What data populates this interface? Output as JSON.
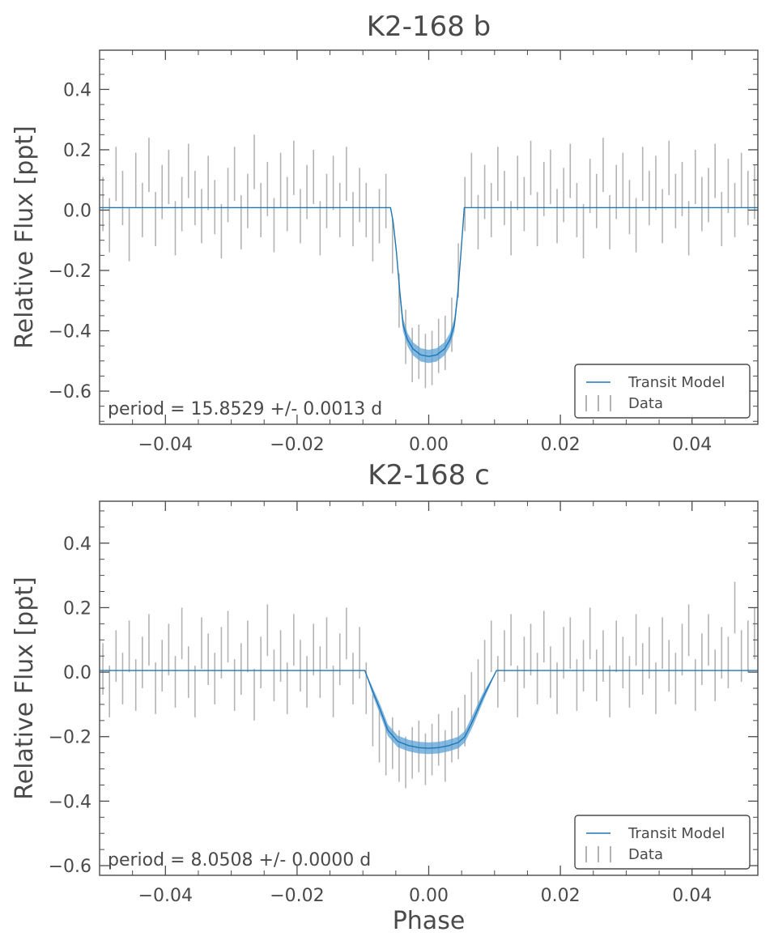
{
  "chart_data": [
    {
      "type": "scatter",
      "title": "K2-168 b",
      "xlabel": "",
      "ylabel": "Relative Flux [ppt]",
      "xlim": [
        -0.05,
        0.05
      ],
      "ylim": [
        -0.71,
        0.53
      ],
      "xticks": [
        -0.04,
        -0.02,
        0.0,
        0.02,
        0.04
      ],
      "xtick_labels": [
        "−0.04",
        "−0.02",
        "0.00",
        "0.02",
        "0.04"
      ],
      "yticks": [
        -0.6,
        -0.4,
        -0.2,
        0.0,
        0.2,
        0.4
      ],
      "ytick_labels": [
        "−0.6",
        "−0.4",
        "−0.2",
        "0.0",
        "0.2",
        "0.4"
      ],
      "annotation": "period = 15.8529 +/- 0.0013 d",
      "legend": {
        "position": "lower right",
        "entries": [
          "Transit Model",
          "Data"
        ]
      },
      "grid": false,
      "colors": {
        "model": "#1f77b4",
        "band": "#5aa0d6",
        "data": "#a0a0a0",
        "axis": "#4a4a4a"
      },
      "series": [
        {
          "name": "Transit Model",
          "kind": "line",
          "x": [
            -0.05,
            -0.0058,
            -0.0054,
            -0.0049,
            -0.0044,
            -0.0039,
            -0.0032,
            -0.0024,
            -0.0012,
            0.0,
            0.0012,
            0.0024,
            0.0032,
            0.0039,
            0.0044,
            0.0049,
            0.0054,
            0.05
          ],
          "y": [
            0.008,
            0.008,
            -0.04,
            -0.14,
            -0.27,
            -0.38,
            -0.43,
            -0.46,
            -0.48,
            -0.485,
            -0.48,
            -0.46,
            -0.43,
            -0.38,
            -0.28,
            -0.14,
            0.008,
            0.008
          ],
          "band_halfwidth": [
            0,
            0,
            0.01,
            0.015,
            0.02,
            0.022,
            0.022,
            0.022,
            0.022,
            0.022,
            0.022,
            0.022,
            0.022,
            0.022,
            0.02,
            0.015,
            0,
            0
          ]
        },
        {
          "name": "Data",
          "kind": "errorbar",
          "x": [
            -0.0495,
            -0.0485,
            -0.0475,
            -0.0465,
            -0.0455,
            -0.0445,
            -0.0435,
            -0.0425,
            -0.0415,
            -0.0405,
            -0.0395,
            -0.0385,
            -0.0375,
            -0.0365,
            -0.0355,
            -0.0345,
            -0.0335,
            -0.0325,
            -0.0315,
            -0.0305,
            -0.0295,
            -0.0285,
            -0.0275,
            -0.0265,
            -0.0255,
            -0.0245,
            -0.0235,
            -0.0225,
            -0.0215,
            -0.0205,
            -0.0195,
            -0.0185,
            -0.0175,
            -0.0165,
            -0.0155,
            -0.0145,
            -0.0135,
            -0.0125,
            -0.0115,
            -0.0105,
            -0.0095,
            -0.0085,
            -0.0075,
            -0.0065,
            -0.0055,
            -0.0045,
            -0.0035,
            -0.0025,
            -0.0015,
            -0.0005,
            0.0005,
            0.0015,
            0.0025,
            0.0035,
            0.0045,
            0.0055,
            0.0065,
            0.0075,
            0.0085,
            0.0095,
            0.0105,
            0.0115,
            0.0125,
            0.0135,
            0.0145,
            0.0155,
            0.0165,
            0.0175,
            0.0185,
            0.0195,
            0.0205,
            0.0215,
            0.0225,
            0.0235,
            0.0245,
            0.0255,
            0.0265,
            0.0275,
            0.0285,
            0.0295,
            0.0305,
            0.0315,
            0.0325,
            0.0335,
            0.0345,
            0.0355,
            0.0365,
            0.0375,
            0.0385,
            0.0395,
            0.0405,
            0.0415,
            0.0425,
            0.0435,
            0.0445,
            0.0455,
            0.0465,
            0.0475,
            0.0485,
            0.0495
          ],
          "y": [
            0.02,
            -0.05,
            0.12,
            0.04,
            -0.08,
            0.1,
            0.0,
            0.15,
            -0.03,
            0.06,
            0.11,
            -0.06,
            0.02,
            0.13,
            0.04,
            -0.02,
            0.09,
            0.01,
            -0.07,
            0.05,
            0.12,
            -0.04,
            0.03,
            0.16,
            0.0,
            0.07,
            -0.05,
            0.1,
            0.02,
            0.14,
            -0.02,
            0.06,
            0.11,
            -0.06,
            0.03,
            0.09,
            0.0,
            0.12,
            -0.03,
            0.05,
            0.0,
            -0.08,
            -0.02,
            0.03,
            -0.12,
            -0.3,
            -0.42,
            -0.48,
            -0.47,
            -0.5,
            -0.49,
            -0.45,
            -0.44,
            -0.38,
            -0.2,
            0.02,
            0.1,
            -0.04,
            0.06,
            0.0,
            0.12,
            0.04,
            -0.06,
            0.09,
            0.02,
            0.14,
            -0.03,
            0.07,
            0.11,
            -0.02,
            0.05,
            0.13,
            0.0,
            -0.07,
            0.08,
            0.03,
            0.15,
            -0.04,
            0.06,
            0.1,
            0.01,
            -0.05,
            0.12,
            0.04,
            0.09,
            -0.02,
            0.14,
            0.03,
            0.07,
            -0.06,
            0.11,
            0.02,
            0.05,
            0.13,
            -0.03,
            0.08,
            0.0,
            0.1,
            0.04,
            0.06
          ],
          "yerr": 0.09
        }
      ]
    },
    {
      "type": "scatter",
      "title": "K2-168 c",
      "xlabel": "Phase",
      "ylabel": "Relative Flux [ppt]",
      "xlim": [
        -0.05,
        0.05
      ],
      "ylim": [
        -0.63,
        0.53
      ],
      "xticks": [
        -0.04,
        -0.02,
        0.0,
        0.02,
        0.04
      ],
      "xtick_labels": [
        "−0.04",
        "−0.02",
        "0.00",
        "0.02",
        "0.04"
      ],
      "yticks": [
        -0.6,
        -0.4,
        -0.2,
        0.0,
        0.2,
        0.4
      ],
      "ytick_labels": [
        "−0.6",
        "−0.4",
        "−0.2",
        "0.0",
        "0.2",
        "0.4"
      ],
      "annotation": "period = 8.0508 +/- 0.0000 d",
      "legend": {
        "position": "lower right",
        "entries": [
          "Transit Model",
          "Data"
        ]
      },
      "grid": false,
      "colors": {
        "model": "#1f77b4",
        "band": "#5aa0d6",
        "data": "#a0a0a0",
        "axis": "#4a4a4a"
      },
      "series": [
        {
          "name": "Transit Model",
          "kind": "line",
          "x": [
            -0.05,
            -0.0097,
            -0.0085,
            -0.0073,
            -0.0062,
            -0.0047,
            -0.003,
            -0.0015,
            0.0,
            0.0015,
            0.003,
            0.0045,
            0.0055,
            0.0067,
            0.0082,
            0.0103,
            0.05
          ],
          "y": [
            0.005,
            0.005,
            -0.06,
            -0.12,
            -0.18,
            -0.215,
            -0.228,
            -0.234,
            -0.236,
            -0.234,
            -0.228,
            -0.218,
            -0.2,
            -0.15,
            -0.08,
            0.005,
            0.005
          ],
          "band_halfwidth": [
            0,
            0,
            0.012,
            0.016,
            0.018,
            0.018,
            0.018,
            0.018,
            0.018,
            0.018,
            0.018,
            0.018,
            0.018,
            0.018,
            0.014,
            0,
            0
          ]
        },
        {
          "name": "Data",
          "kind": "errorbar",
          "x": [
            -0.0495,
            -0.0485,
            -0.0475,
            -0.0465,
            -0.0455,
            -0.0445,
            -0.0435,
            -0.0425,
            -0.0415,
            -0.0405,
            -0.0395,
            -0.0385,
            -0.0375,
            -0.0365,
            -0.0355,
            -0.0345,
            -0.0335,
            -0.0325,
            -0.0315,
            -0.0305,
            -0.0295,
            -0.0285,
            -0.0275,
            -0.0265,
            -0.0255,
            -0.0245,
            -0.0235,
            -0.0225,
            -0.0215,
            -0.0205,
            -0.0195,
            -0.0185,
            -0.0175,
            -0.0165,
            -0.0155,
            -0.0145,
            -0.0135,
            -0.0125,
            -0.0115,
            -0.0105,
            -0.0095,
            -0.0085,
            -0.0075,
            -0.0065,
            -0.0055,
            -0.0045,
            -0.0035,
            -0.0025,
            -0.0015,
            -0.0005,
            0.0005,
            0.0015,
            0.0025,
            0.0035,
            0.0045,
            0.0055,
            0.0065,
            0.0075,
            0.0085,
            0.0095,
            0.0105,
            0.0115,
            0.0125,
            0.0135,
            0.0145,
            0.0155,
            0.0165,
            0.0175,
            0.0185,
            0.0195,
            0.0205,
            0.0215,
            0.0225,
            0.0235,
            0.0245,
            0.0255,
            0.0265,
            0.0275,
            0.0285,
            0.0295,
            0.0305,
            0.0315,
            0.0325,
            0.0335,
            0.0345,
            0.0355,
            0.0365,
            0.0375,
            0.0385,
            0.0395,
            0.0405,
            0.0415,
            0.0425,
            0.0435,
            0.0445,
            0.0455,
            0.0465,
            0.0475,
            0.0485,
            0.0495
          ],
          "y": [
            0.01,
            -0.06,
            0.05,
            -0.02,
            0.08,
            -0.04,
            0.03,
            0.1,
            -0.05,
            0.02,
            0.07,
            -0.03,
            0.12,
            0.0,
            -0.06,
            0.09,
            0.04,
            -0.02,
            0.06,
            0.11,
            -0.04,
            0.01,
            0.08,
            -0.07,
            0.03,
            0.13,
            -0.01,
            0.05,
            -0.05,
            0.1,
            0.02,
            -0.03,
            0.07,
            0.0,
            0.09,
            -0.06,
            0.04,
            0.12,
            -0.02,
            0.06,
            -0.05,
            -0.15,
            -0.2,
            -0.24,
            -0.22,
            -0.26,
            -0.28,
            -0.25,
            -0.23,
            -0.27,
            -0.24,
            -0.21,
            -0.26,
            -0.2,
            -0.19,
            -0.15,
            -0.08,
            -0.04,
            0.02,
            0.08,
            -0.03,
            0.05,
            0.1,
            -0.06,
            0.03,
            0.07,
            -0.02,
            0.11,
            0.0,
            -0.05,
            0.06,
            0.09,
            -0.04,
            0.02,
            0.12,
            -0.01,
            0.05,
            -0.06,
            0.08,
            0.03,
            -0.03,
            0.1,
            0.01,
            0.06,
            -0.05,
            0.09,
            0.02,
            -0.02,
            0.07,
            0.13,
            -0.04,
            0.04,
            0.1,
            -0.01,
            0.06,
            0.03,
            0.2,
            0.05,
            0.08,
            0.12
          ],
          "yerr": 0.08
        }
      ]
    }
  ]
}
